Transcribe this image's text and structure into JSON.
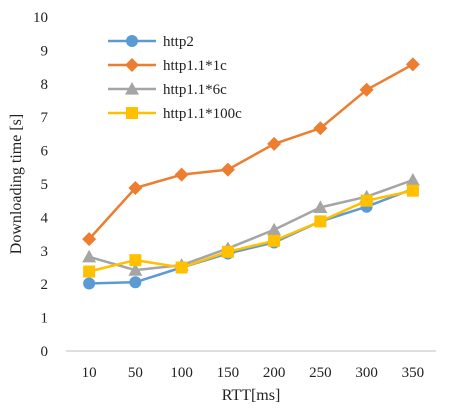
{
  "chart_data": {
    "type": "line",
    "title": "",
    "xlabel": "RTT[ms]",
    "ylabel": "Downloading time [s]",
    "categories": [
      "10",
      "50",
      "100",
      "150",
      "200",
      "250",
      "300",
      "350"
    ],
    "ylim": [
      0,
      10
    ],
    "yticks": [
      "0",
      "1",
      "2",
      "3",
      "4",
      "5",
      "6",
      "7",
      "8",
      "9",
      "10"
    ],
    "grid": false,
    "legend_position": "top-left",
    "series": [
      {
        "name": "http2",
        "color": "#5B9BD5",
        "marker": "circle",
        "values": [
          2.02,
          2.06,
          2.5,
          2.92,
          3.25,
          3.88,
          4.32,
          4.85
        ]
      },
      {
        "name": "http1.1*1c",
        "color": "#ED7D31",
        "marker": "diamond",
        "values": [
          3.35,
          4.88,
          5.28,
          5.43,
          6.2,
          6.67,
          7.82,
          8.58
        ]
      },
      {
        "name": "http1.1*6c",
        "color": "#A5A5A5",
        "marker": "triangle",
        "values": [
          2.82,
          2.42,
          2.57,
          3.07,
          3.63,
          4.3,
          4.62,
          5.12
        ]
      },
      {
        "name": "http1.1*100c",
        "color": "#FFC000",
        "marker": "square",
        "values": [
          2.38,
          2.72,
          2.5,
          2.97,
          3.3,
          3.88,
          4.5,
          4.8
        ]
      }
    ]
  }
}
